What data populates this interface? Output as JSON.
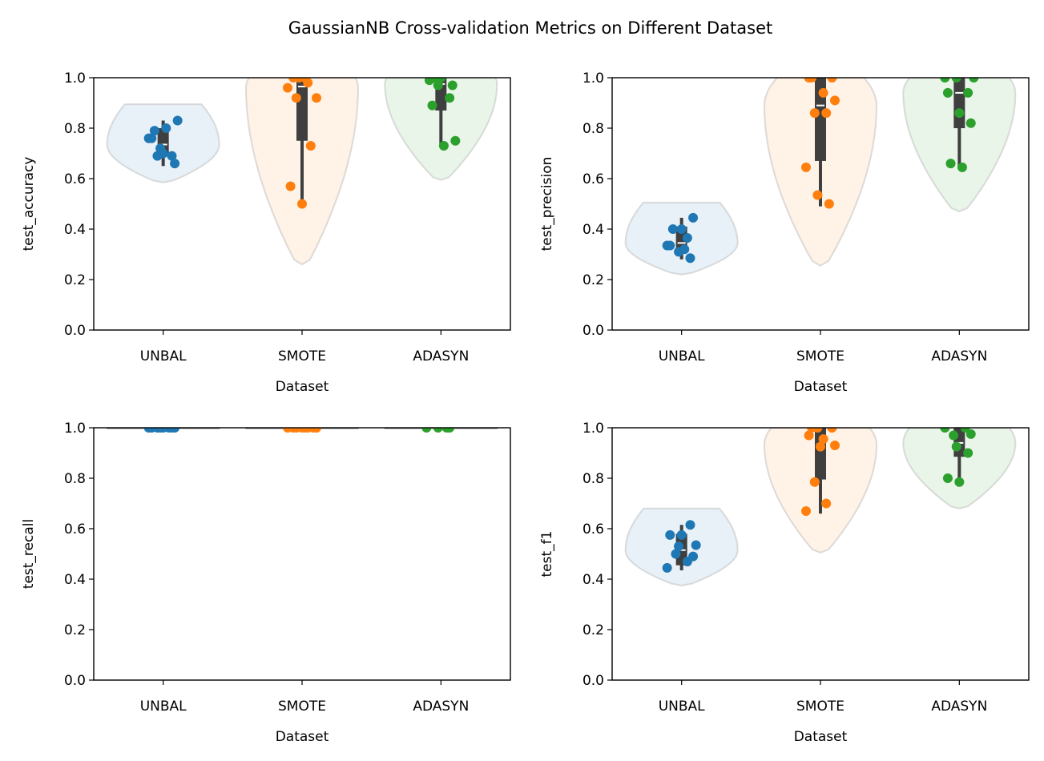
{
  "chart_data": {
    "type": "violin",
    "title": "GaussianNB Cross-validation Metrics on Different Dataset",
    "categories": [
      "UNBAL",
      "SMOTE",
      "ADASYN"
    ],
    "colors": {
      "UNBAL": "#1f77b4",
      "SMOTE": "#ff7f0e",
      "ADASYN": "#2ca02c"
    },
    "grid": false,
    "yticks": [
      "0.0",
      "0.2",
      "0.4",
      "0.6",
      "0.8",
      "1.0"
    ],
    "panels": [
      {
        "ylabel": "test_accuracy",
        "xlabel": "Dataset",
        "ylim": [
          0,
          1
        ],
        "series": [
          {
            "category": "UNBAL",
            "points": [
              0.76,
              0.72,
              0.69,
              0.76,
              0.7,
              0.66,
              0.79,
              0.8,
              0.83,
              0.69
            ],
            "median": 0.735,
            "q1": 0.7,
            "q3": 0.8,
            "whisker": [
              0.65,
              0.83
            ],
            "violin_range": [
              0.585,
              0.895
            ]
          },
          {
            "category": "SMOTE",
            "points": [
              1.0,
              1.0,
              0.92,
              0.92,
              0.98,
              0.96,
              1.0,
              0.73,
              0.57,
              0.5
            ],
            "median": 0.965,
            "q1": 0.75,
            "q3": 1.0,
            "whisker": [
              0.49,
              1.0
            ],
            "violin_range": [
              0.26,
              1.0
            ]
          },
          {
            "category": "ADASYN",
            "points": [
              0.97,
              0.92,
              0.99,
              1.0,
              0.97,
              0.89,
              0.73,
              0.75,
              1.0
            ],
            "median": 0.975,
            "q1": 0.87,
            "q3": 1.0,
            "whisker": [
              0.73,
              1.0
            ],
            "violin_range": [
              0.595,
              1.0
            ]
          }
        ]
      },
      {
        "ylabel": "test_precision",
        "xlabel": "Dataset",
        "ylim": [
          0,
          1
        ],
        "series": [
          {
            "category": "UNBAL",
            "points": [
              0.365,
              0.335,
              0.31,
              0.285,
              0.335,
              0.4,
              0.445,
              0.4,
              0.32
            ],
            "median": 0.345,
            "q1": 0.31,
            "q3": 0.41,
            "whisker": [
              0.28,
              0.445
            ],
            "violin_range": [
              0.22,
              0.505
            ]
          },
          {
            "category": "SMOTE",
            "points": [
              1.0,
              1.0,
              0.94,
              0.91,
              0.86,
              0.86,
              0.645,
              0.535,
              0.5,
              1.0
            ],
            "median": 0.89,
            "q1": 0.67,
            "q3": 1.0,
            "whisker": [
              0.49,
              1.0
            ],
            "violin_range": [
              0.255,
              1.0
            ]
          },
          {
            "category": "ADASYN",
            "points": [
              1.0,
              1.0,
              0.94,
              0.94,
              0.86,
              0.82,
              0.66,
              0.645,
              1.0
            ],
            "median": 0.94,
            "q1": 0.8,
            "q3": 1.0,
            "whisker": [
              0.64,
              1.0
            ],
            "violin_range": [
              0.47,
              1.0
            ]
          }
        ]
      },
      {
        "ylabel": "test_recall",
        "xlabel": "Dataset",
        "ylim": [
          0,
          1
        ],
        "series": [
          {
            "category": "UNBAL",
            "points": [
              1.0,
              1.0,
              1.0,
              1.0,
              1.0,
              1.0,
              1.0,
              1.0
            ],
            "median": 1.0,
            "q1": 1.0,
            "q3": 1.0,
            "whisker": [
              1.0,
              1.0
            ],
            "violin_range": [
              1.0,
              1.0
            ]
          },
          {
            "category": "SMOTE",
            "points": [
              1.0,
              1.0,
              1.0,
              1.0,
              1.0,
              1.0,
              1.0,
              1.0
            ],
            "median": 1.0,
            "q1": 1.0,
            "q3": 1.0,
            "whisker": [
              1.0,
              1.0
            ],
            "violin_range": [
              1.0,
              1.0
            ]
          },
          {
            "category": "ADASYN",
            "points": [
              1.0,
              1.0,
              1.0,
              1.0
            ],
            "median": 1.0,
            "q1": 1.0,
            "q3": 1.0,
            "whisker": [
              1.0,
              1.0
            ],
            "violin_range": [
              1.0,
              1.0
            ]
          }
        ]
      },
      {
        "ylabel": "test_f1",
        "xlabel": "Dataset",
        "ylim": [
          0,
          1
        ],
        "series": [
          {
            "category": "UNBAL",
            "points": [
              0.535,
              0.5,
              0.47,
              0.445,
              0.53,
              0.615,
              0.575,
              0.575,
              0.49
            ],
            "median": 0.515,
            "q1": 0.455,
            "q3": 0.58,
            "whisker": [
              0.435,
              0.615
            ],
            "violin_range": [
              0.375,
              0.68
            ]
          },
          {
            "category": "SMOTE",
            "points": [
              0.97,
              0.925,
              1.0,
              1.0,
              0.955,
              0.93,
              0.785,
              0.7,
              0.67,
              1.0
            ],
            "median": 0.935,
            "q1": 0.795,
            "q3": 1.0,
            "whisker": [
              0.66,
              1.0
            ],
            "violin_range": [
              0.505,
              1.0
            ]
          },
          {
            "category": "ADASYN",
            "points": [
              0.97,
              1.0,
              1.0,
              0.925,
              0.9,
              0.8,
              0.785,
              0.975
            ],
            "median": 0.94,
            "q1": 0.885,
            "q3": 1.0,
            "whisker": [
              0.785,
              1.0
            ],
            "violin_range": [
              0.68,
              1.0
            ]
          }
        ]
      }
    ]
  }
}
